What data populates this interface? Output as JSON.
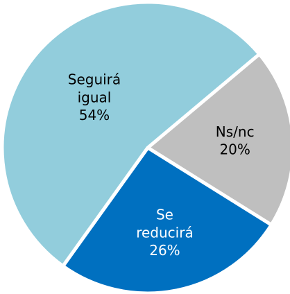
{
  "chart_data": {
    "type": "pie",
    "categories": [
      "Ns/nc",
      "Se reducirá",
      "Seguirá igual"
    ],
    "values": [
      20,
      26,
      54
    ],
    "value_labels": [
      "20%",
      "26%",
      "54%"
    ],
    "colors": [
      "#bfbfbf",
      "#0070c0",
      "#92cddc"
    ]
  }
}
